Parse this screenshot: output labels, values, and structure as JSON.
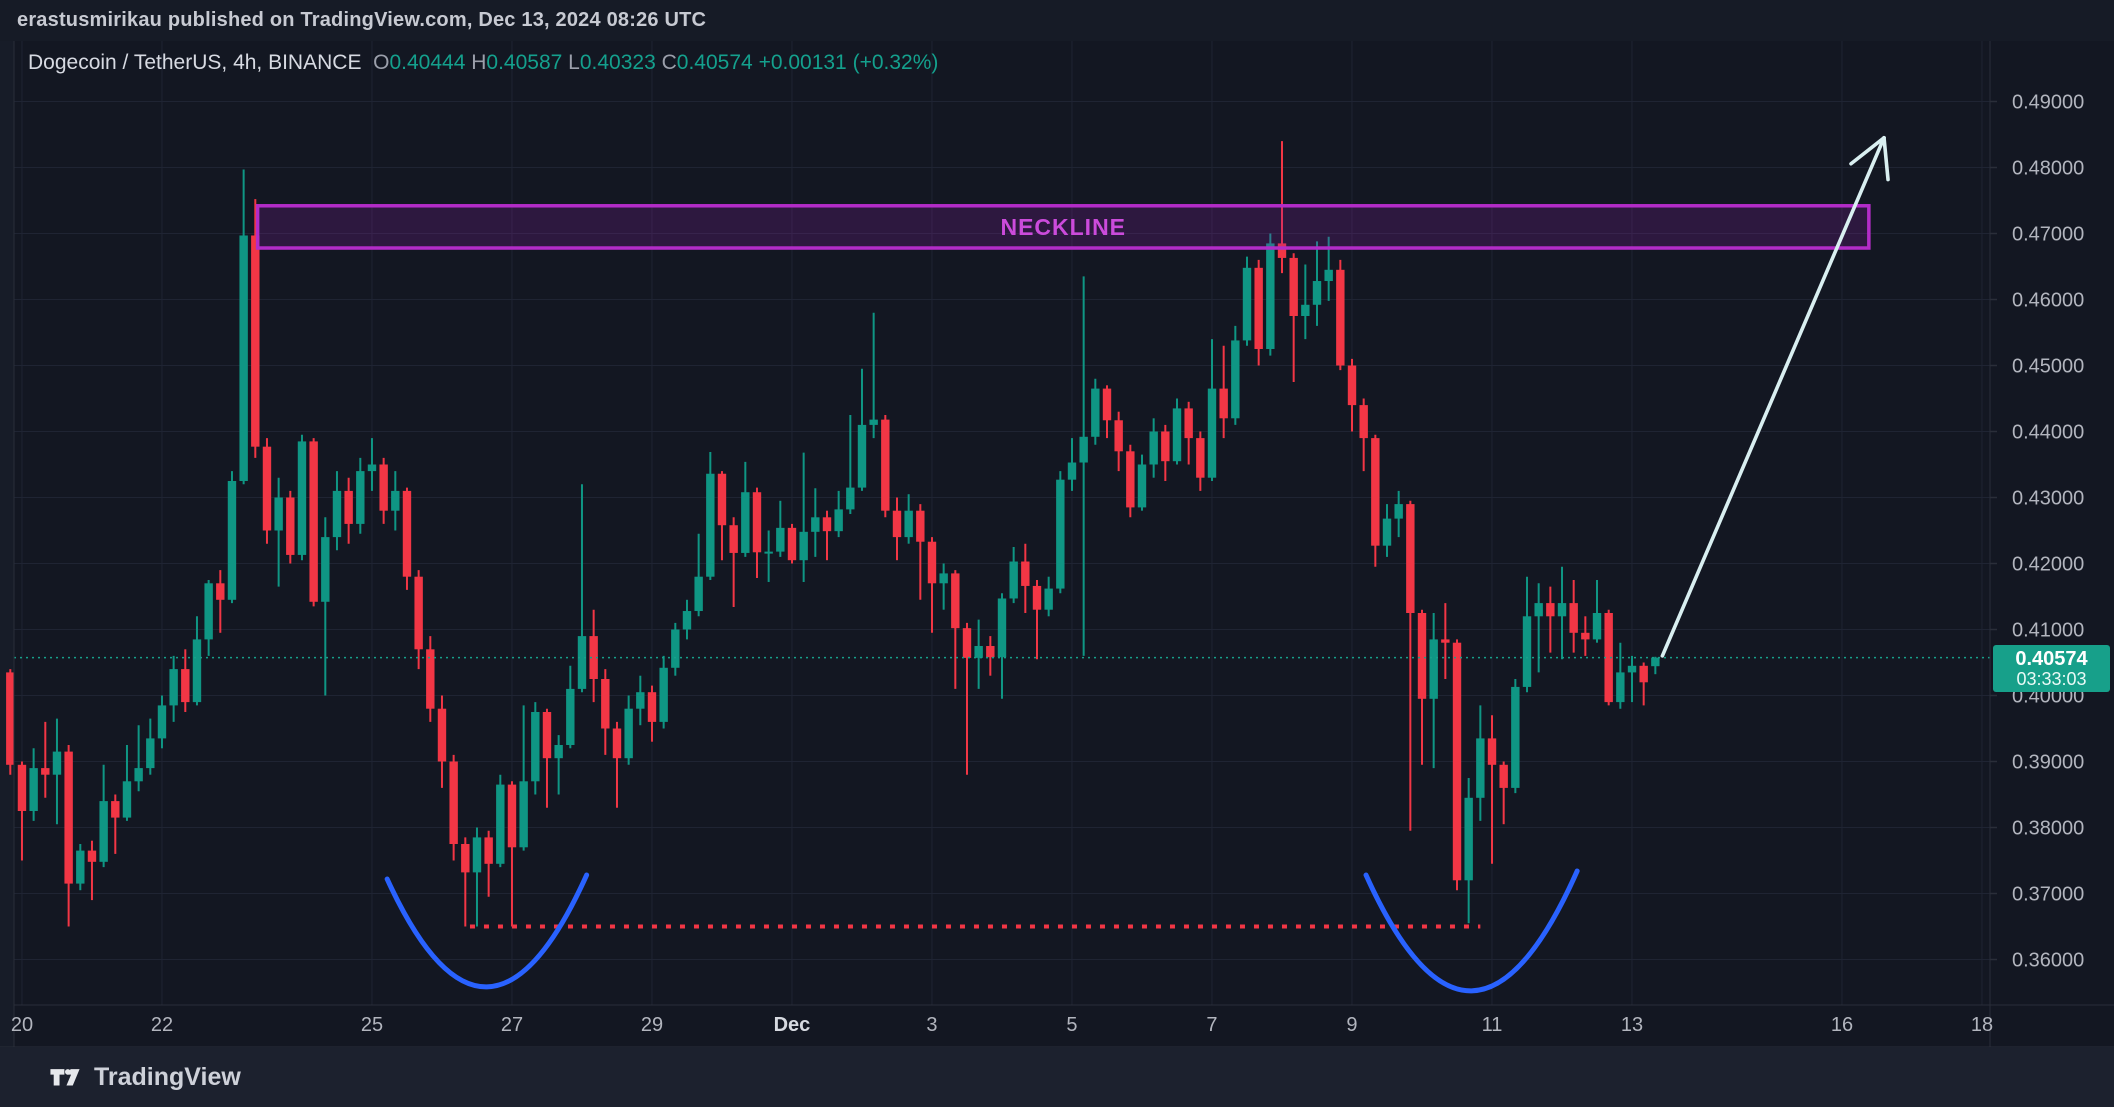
{
  "header": {
    "publish_text": "erastusmirikau published on TradingView.com, Dec 13, 2024 08:26 UTC"
  },
  "legend": {
    "symbol": "Dogecoin / TetherUS",
    "interval": "4h",
    "exchange": "BINANCE",
    "o_label": "O",
    "o_value": "0.40444",
    "h_label": "H",
    "h_value": "0.40587",
    "l_label": "L",
    "l_value": "0.40323",
    "c_label": "C",
    "c_value": "0.40574",
    "change": "+0.00131 (+0.32%)"
  },
  "current": {
    "price": "0.40574",
    "countdown": "03:33:03"
  },
  "footer": {
    "brand": "TradingView"
  },
  "colors": {
    "up": "#0f9684",
    "down": "#f23645",
    "pane_bg": "#131722",
    "grid": "#1f2433",
    "axis_text": "#b2b5be",
    "axis_text_bright": "#d6d9e0",
    "border": "#2a2e39",
    "accent_blue": "#2962ff",
    "neckline_stroke": "#b32cc8",
    "neckline_fill": "rgba(140,30,170,0.22)",
    "neckline_text": "#cb4bdb",
    "support_red": "#f23645",
    "arrow": "#d9eff1",
    "last_price_line": "#17a08a",
    "badge_bg": "#17a08a"
  },
  "chart_data": {
    "type": "candlestick",
    "title": "Dogecoin / TetherUS, 4h, BINANCE",
    "legend_note": "grid on; price axis right; labels Nov 20 - Dec 18, 2024",
    "y_axis": {
      "min": 0.353,
      "max": 0.495,
      "tick_step": 0.01,
      "tick_labels": [
        "0.49000",
        "0.48000",
        "0.47000",
        "0.46000",
        "0.45000",
        "0.44000",
        "0.43000",
        "0.42000",
        "0.41000",
        "0.40000",
        "0.39000",
        "0.38000",
        "0.37000",
        "0.36000"
      ]
    },
    "x_axis": {
      "tick_labels": [
        {
          "label": "20",
          "day": 0,
          "month": false
        },
        {
          "label": "22",
          "day": 2,
          "month": false
        },
        {
          "label": "25",
          "day": 5,
          "month": false
        },
        {
          "label": "27",
          "day": 7,
          "month": false
        },
        {
          "label": "29",
          "day": 9,
          "month": false
        },
        {
          "label": "Dec",
          "day": 11,
          "month": true
        },
        {
          "label": "3",
          "day": 13,
          "month": false
        },
        {
          "label": "5",
          "day": 15,
          "month": false
        },
        {
          "label": "7",
          "day": 17,
          "month": false
        },
        {
          "label": "9",
          "day": 19,
          "month": false
        },
        {
          "label": "11",
          "day": 21,
          "month": false
        },
        {
          "label": "13",
          "day": 23,
          "month": false
        },
        {
          "label": "16",
          "day": 26,
          "month": false
        },
        {
          "label": "18",
          "day": 28,
          "month": false
        }
      ]
    },
    "candles": [
      [
        "11-19 20:00",
        0.4035,
        0.404,
        0.388,
        0.3895
      ],
      [
        "11-20 00:00",
        0.3895,
        0.39,
        0.375,
        0.3825
      ],
      [
        "11-20 04:00",
        0.3825,
        0.392,
        0.381,
        0.389
      ],
      [
        "11-20 08:00",
        0.389,
        0.396,
        0.3845,
        0.388
      ],
      [
        "11-20 12:00",
        0.388,
        0.3965,
        0.3805,
        0.3915
      ],
      [
        "11-20 16:00",
        0.3915,
        0.3925,
        0.365,
        0.3715
      ],
      [
        "11-20 20:00",
        0.3715,
        0.3775,
        0.3705,
        0.3765
      ],
      [
        "11-21 00:00",
        0.3765,
        0.378,
        0.369,
        0.3748
      ],
      [
        "11-21 04:00",
        0.3748,
        0.3895,
        0.374,
        0.384
      ],
      [
        "11-21 08:00",
        0.384,
        0.385,
        0.376,
        0.3815
      ],
      [
        "11-21 12:00",
        0.3815,
        0.3925,
        0.381,
        0.387
      ],
      [
        "11-21 16:00",
        0.387,
        0.3955,
        0.3855,
        0.389
      ],
      [
        "11-21 20:00",
        0.389,
        0.3965,
        0.388,
        0.3935
      ],
      [
        "11-22 00:00",
        0.3935,
        0.4,
        0.392,
        0.3985
      ],
      [
        "11-22 04:00",
        0.3985,
        0.406,
        0.396,
        0.404
      ],
      [
        "11-22 08:00",
        0.404,
        0.407,
        0.3975,
        0.399
      ],
      [
        "11-22 12:00",
        0.399,
        0.412,
        0.3985,
        0.4085
      ],
      [
        "11-22 16:00",
        0.4085,
        0.4175,
        0.406,
        0.417
      ],
      [
        "11-22 20:00",
        0.417,
        0.419,
        0.4095,
        0.4145
      ],
      [
        "11-23 00:00",
        0.4145,
        0.434,
        0.414,
        0.4325
      ],
      [
        "11-23 04:00",
        0.4325,
        0.4797,
        0.432,
        0.4697
      ],
      [
        "11-23 08:00",
        0.4697,
        0.4752,
        0.436,
        0.4377
      ],
      [
        "11-23 12:00",
        0.4377,
        0.439,
        0.423,
        0.425
      ],
      [
        "11-23 16:00",
        0.425,
        0.433,
        0.4165,
        0.43
      ],
      [
        "11-23 20:00",
        0.43,
        0.431,
        0.42,
        0.4213
      ],
      [
        "11-24 00:00",
        0.4213,
        0.4395,
        0.4205,
        0.4385
      ],
      [
        "11-24 04:00",
        0.4385,
        0.439,
        0.4135,
        0.4142
      ],
      [
        "11-24 08:00",
        0.4142,
        0.427,
        0.4,
        0.424
      ],
      [
        "11-24 12:00",
        0.424,
        0.434,
        0.422,
        0.431
      ],
      [
        "11-24 16:00",
        0.431,
        0.433,
        0.423,
        0.426
      ],
      [
        "11-24 20:00",
        0.426,
        0.436,
        0.4245,
        0.434
      ],
      [
        "11-25 00:00",
        0.434,
        0.439,
        0.431,
        0.435
      ],
      [
        "11-25 04:00",
        0.435,
        0.436,
        0.426,
        0.428
      ],
      [
        "11-25 08:00",
        0.428,
        0.434,
        0.425,
        0.431
      ],
      [
        "11-25 12:00",
        0.431,
        0.4315,
        0.416,
        0.418
      ],
      [
        "11-25 16:00",
        0.418,
        0.419,
        0.404,
        0.407
      ],
      [
        "11-25 20:00",
        0.407,
        0.409,
        0.396,
        0.398
      ],
      [
        "11-26 00:00",
        0.398,
        0.4,
        0.386,
        0.39
      ],
      [
        "11-26 04:00",
        0.39,
        0.391,
        0.375,
        0.3775
      ],
      [
        "11-26 08:00",
        0.3775,
        0.3785,
        0.365,
        0.3732
      ],
      [
        "11-26 12:00",
        0.3732,
        0.38,
        0.365,
        0.3785
      ],
      [
        "11-26 16:00",
        0.3785,
        0.3795,
        0.3695,
        0.3745
      ],
      [
        "11-26 20:00",
        0.3745,
        0.388,
        0.374,
        0.3865
      ],
      [
        "11-27 00:00",
        0.3865,
        0.387,
        0.365,
        0.377
      ],
      [
        "11-27 04:00",
        0.377,
        0.3985,
        0.3765,
        0.387
      ],
      [
        "11-27 08:00",
        0.387,
        0.399,
        0.385,
        0.3975
      ],
      [
        "11-27 12:00",
        0.3975,
        0.398,
        0.383,
        0.3905
      ],
      [
        "11-27 16:00",
        0.3905,
        0.394,
        0.385,
        0.3925
      ],
      [
        "11-27 20:00",
        0.3925,
        0.4045,
        0.392,
        0.401
      ],
      [
        "11-28 00:00",
        0.401,
        0.432,
        0.4005,
        0.409
      ],
      [
        "11-28 04:00",
        0.409,
        0.413,
        0.399,
        0.4025
      ],
      [
        "11-28 08:00",
        0.4025,
        0.404,
        0.391,
        0.395
      ],
      [
        "11-28 12:00",
        0.395,
        0.396,
        0.383,
        0.3905
      ],
      [
        "11-28 16:00",
        0.3905,
        0.4,
        0.3895,
        0.398
      ],
      [
        "11-28 20:00",
        0.398,
        0.403,
        0.3955,
        0.4005
      ],
      [
        "11-29 00:00",
        0.4005,
        0.4015,
        0.393,
        0.396
      ],
      [
        "11-29 04:00",
        0.396,
        0.406,
        0.395,
        0.4042
      ],
      [
        "11-29 08:00",
        0.4042,
        0.411,
        0.403,
        0.41
      ],
      [
        "11-29 12:00",
        0.41,
        0.4145,
        0.4085,
        0.4128
      ],
      [
        "11-29 16:00",
        0.4128,
        0.4245,
        0.412,
        0.418
      ],
      [
        "11-29 20:00",
        0.418,
        0.4369,
        0.4175,
        0.4336
      ],
      [
        "11-30 00:00",
        0.4336,
        0.434,
        0.4205,
        0.4258
      ],
      [
        "11-30 04:00",
        0.4258,
        0.427,
        0.4134,
        0.4216
      ],
      [
        "11-30 08:00",
        0.4216,
        0.4354,
        0.421,
        0.4308
      ],
      [
        "11-30 12:00",
        0.4308,
        0.4315,
        0.4178,
        0.4217
      ],
      [
        "11-30 16:00",
        0.4217,
        0.425,
        0.4172,
        0.4218
      ],
      [
        "11-30 20:00",
        0.4218,
        0.4295,
        0.421,
        0.4254
      ],
      [
        "12-01 00:00",
        0.4254,
        0.426,
        0.42,
        0.4205
      ],
      [
        "12-01 04:00",
        0.4205,
        0.4368,
        0.4172,
        0.4248
      ],
      [
        "12-01 08:00",
        0.4248,
        0.4314,
        0.421,
        0.427
      ],
      [
        "12-01 12:00",
        0.427,
        0.428,
        0.4205,
        0.4249
      ],
      [
        "12-01 16:00",
        0.4249,
        0.431,
        0.424,
        0.4282
      ],
      [
        "12-01 20:00",
        0.4282,
        0.4425,
        0.4275,
        0.4315
      ],
      [
        "12-02 00:00",
        0.4315,
        0.4495,
        0.431,
        0.441
      ],
      [
        "12-02 04:00",
        0.441,
        0.458,
        0.439,
        0.4418
      ],
      [
        "12-02 08:00",
        0.4418,
        0.4425,
        0.427,
        0.428
      ],
      [
        "12-02 12:00",
        0.428,
        0.43,
        0.4205,
        0.424
      ],
      [
        "12-02 16:00",
        0.424,
        0.4305,
        0.423,
        0.428
      ],
      [
        "12-02 20:00",
        0.428,
        0.429,
        0.4145,
        0.4233
      ],
      [
        "12-03 00:00",
        0.4233,
        0.424,
        0.4095,
        0.417
      ],
      [
        "12-03 04:00",
        0.417,
        0.42,
        0.413,
        0.4185
      ],
      [
        "12-03 08:00",
        0.4185,
        0.419,
        0.401,
        0.4102
      ],
      [
        "12-03 12:00",
        0.4102,
        0.411,
        0.388,
        0.4057
      ],
      [
        "12-03 16:00",
        0.4057,
        0.4115,
        0.401,
        0.4075
      ],
      [
        "12-03 20:00",
        0.4075,
        0.409,
        0.403,
        0.4058
      ],
      [
        "12-04 00:00",
        0.4058,
        0.4155,
        0.3995,
        0.4147
      ],
      [
        "12-04 04:00",
        0.4147,
        0.4225,
        0.414,
        0.4203
      ],
      [
        "12-04 08:00",
        0.4203,
        0.423,
        0.4125,
        0.4166
      ],
      [
        "12-04 12:00",
        0.4166,
        0.4175,
        0.4055,
        0.413
      ],
      [
        "12-04 16:00",
        0.413,
        0.418,
        0.412,
        0.4162
      ],
      [
        "12-04 20:00",
        0.4162,
        0.434,
        0.4155,
        0.4327
      ],
      [
        "12-05 00:00",
        0.4327,
        0.439,
        0.431,
        0.4353
      ],
      [
        "12-05 04:00",
        0.4353,
        0.4635,
        0.406,
        0.4392
      ],
      [
        "12-05 08:00",
        0.4392,
        0.448,
        0.438,
        0.4465
      ],
      [
        "12-05 12:00",
        0.4465,
        0.447,
        0.439,
        0.4417
      ],
      [
        "12-05 16:00",
        0.4417,
        0.443,
        0.434,
        0.437
      ],
      [
        "12-05 20:00",
        0.437,
        0.438,
        0.427,
        0.4285
      ],
      [
        "12-06 00:00",
        0.4285,
        0.4365,
        0.428,
        0.435
      ],
      [
        "12-06 04:00",
        0.435,
        0.442,
        0.433,
        0.44
      ],
      [
        "12-06 08:00",
        0.44,
        0.441,
        0.4325,
        0.4355
      ],
      [
        "12-06 12:00",
        0.4355,
        0.445,
        0.435,
        0.4435
      ],
      [
        "12-06 16:00",
        0.4435,
        0.4445,
        0.435,
        0.439
      ],
      [
        "12-06 20:00",
        0.439,
        0.44,
        0.431,
        0.433
      ],
      [
        "12-07 00:00",
        0.433,
        0.454,
        0.4325,
        0.4465
      ],
      [
        "12-07 04:00",
        0.4465,
        0.453,
        0.439,
        0.442
      ],
      [
        "12-07 08:00",
        0.442,
        0.456,
        0.441,
        0.4538
      ],
      [
        "12-07 12:00",
        0.4538,
        0.4665,
        0.453,
        0.4648
      ],
      [
        "12-07 16:00",
        0.4648,
        0.466,
        0.45,
        0.4525
      ],
      [
        "12-07 20:00",
        0.4525,
        0.47,
        0.4515,
        0.4685
      ],
      [
        "12-08 00:00",
        0.4685,
        0.484,
        0.464,
        0.4663
      ],
      [
        "12-08 04:00",
        0.4663,
        0.467,
        0.4475,
        0.4575
      ],
      [
        "12-08 08:00",
        0.4575,
        0.4653,
        0.454,
        0.4592
      ],
      [
        "12-08 12:00",
        0.4592,
        0.4688,
        0.456,
        0.4628
      ],
      [
        "12-08 16:00",
        0.4628,
        0.4695,
        0.4598,
        0.4645
      ],
      [
        "12-08 20:00",
        0.4645,
        0.466,
        0.4493,
        0.45
      ],
      [
        "12-09 00:00",
        0.45,
        0.451,
        0.44,
        0.444
      ],
      [
        "12-09 04:00",
        0.444,
        0.445,
        0.434,
        0.439
      ],
      [
        "12-09 08:00",
        0.439,
        0.4395,
        0.4195,
        0.4227
      ],
      [
        "12-09 12:00",
        0.4227,
        0.429,
        0.421,
        0.4268
      ],
      [
        "12-09 16:00",
        0.4268,
        0.431,
        0.424,
        0.429
      ],
      [
        "12-09 20:00",
        0.429,
        0.4295,
        0.3795,
        0.4125
      ],
      [
        "12-10 00:00",
        0.4125,
        0.413,
        0.3895,
        0.3995
      ],
      [
        "12-10 04:00",
        0.3995,
        0.4125,
        0.389,
        0.4085
      ],
      [
        "12-10 08:00",
        0.4085,
        0.414,
        0.4025,
        0.408
      ],
      [
        "12-10 12:00",
        0.408,
        0.4085,
        0.3705,
        0.372
      ],
      [
        "12-10 16:00",
        0.372,
        0.3875,
        0.3655,
        0.3845
      ],
      [
        "12-10 20:00",
        0.3845,
        0.3985,
        0.381,
        0.3935
      ],
      [
        "12-11 00:00",
        0.3935,
        0.397,
        0.3745,
        0.3895
      ],
      [
        "12-11 04:00",
        0.3895,
        0.39,
        0.3805,
        0.386
      ],
      [
        "12-11 08:00",
        0.386,
        0.4025,
        0.3852,
        0.4013
      ],
      [
        "12-11 12:00",
        0.4013,
        0.418,
        0.4005,
        0.412
      ],
      [
        "12-11 16:00",
        0.412,
        0.417,
        0.4035,
        0.414
      ],
      [
        "12-11 20:00",
        0.414,
        0.4165,
        0.4065,
        0.412
      ],
      [
        "12-12 00:00",
        0.412,
        0.4195,
        0.4055,
        0.414
      ],
      [
        "12-12 04:00",
        0.414,
        0.4175,
        0.4065,
        0.4095
      ],
      [
        "12-12 08:00",
        0.4095,
        0.412,
        0.406,
        0.4085
      ],
      [
        "12-12 12:00",
        0.4085,
        0.4175,
        0.408,
        0.4125
      ],
      [
        "12-12 16:00",
        0.4125,
        0.413,
        0.3985,
        0.399
      ],
      [
        "12-12 20:00",
        0.399,
        0.408,
        0.398,
        0.4035
      ],
      [
        "12-13 00:00",
        0.4035,
        0.406,
        0.399,
        0.4045
      ],
      [
        "12-13 04:00",
        0.4045,
        0.405,
        0.3985,
        0.402
      ],
      [
        "12-13 08:00",
        0.40444,
        0.40587,
        0.40323,
        0.40574
      ]
    ],
    "annotations": {
      "neckline_zone": {
        "label": "NECKLINE",
        "i1": 21.2,
        "i2": 159.3,
        "price_top": 0.4742,
        "price_bottom": 0.4678
      },
      "support_dotted": {
        "price": 0.365,
        "i1": 39.4,
        "i2": 126.0
      },
      "cup1": {
        "i1": 32.3,
        "i2": 49.4,
        "price_ends": 0.3722,
        "price_bottom": 0.3557
      },
      "cup2": {
        "i1": 116.2,
        "i2": 134.3,
        "price_ends": 0.3728,
        "price_bottom": 0.3551
      },
      "arrow": {
        "i1": 141.6,
        "price1": 0.406,
        "i2": 160.6,
        "price2": 0.4845
      },
      "last_price_line": {
        "price": 0.40574
      }
    }
  }
}
